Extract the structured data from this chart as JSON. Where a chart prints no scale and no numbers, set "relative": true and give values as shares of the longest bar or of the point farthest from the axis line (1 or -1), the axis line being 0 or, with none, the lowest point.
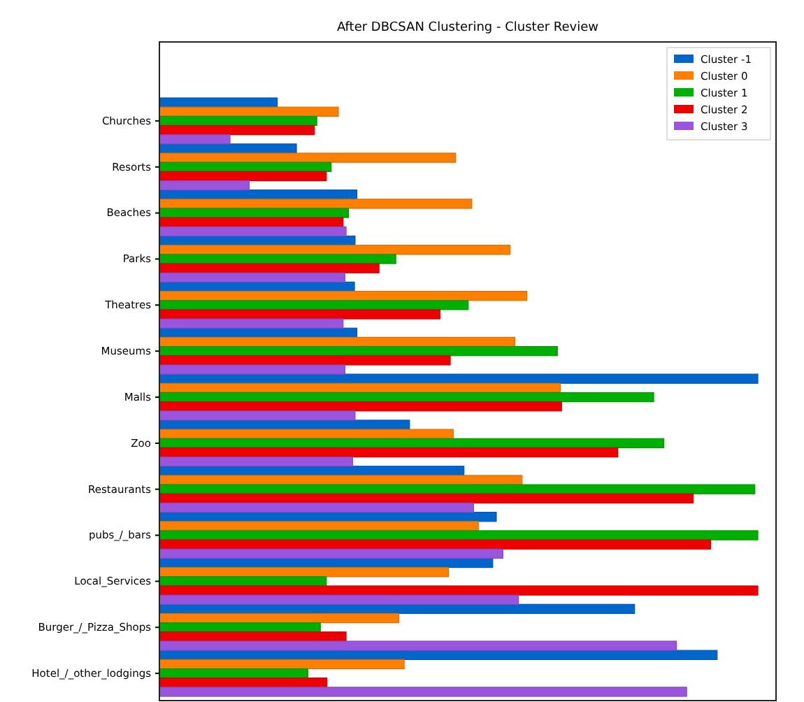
{
  "chart_data": {
    "type": "bar",
    "orientation": "horizontal",
    "relative": true,
    "title": "After DBCSAN Clustering - Cluster Review",
    "categories": [
      "Churches",
      "Resorts",
      "Beaches",
      "Parks",
      "Theatres",
      "Museums",
      "Malls",
      "Zoo",
      "Restaurants",
      "pubs_/_bars",
      "Local_Services",
      "Burger_/_Pizza_Shops",
      "Hotel_/_other_lodgings"
    ],
    "legend": "top right",
    "series": [
      {
        "name": "Cluster -1",
        "color": "#0066cc",
        "values": [
          0.197,
          0.229,
          0.33,
          0.327,
          0.326,
          0.33,
          1.0,
          0.418,
          0.509,
          0.563,
          0.557,
          0.794,
          0.932
        ]
      },
      {
        "name": "Cluster 0",
        "color": "#ff7f00",
        "values": [
          0.299,
          0.495,
          0.522,
          0.586,
          0.614,
          0.594,
          0.67,
          0.491,
          0.606,
          0.533,
          0.483,
          0.4,
          0.409
        ]
      },
      {
        "name": "Cluster 1",
        "color": "#00b000",
        "values": [
          0.263,
          0.287,
          0.316,
          0.395,
          0.516,
          0.665,
          0.826,
          0.843,
          0.995,
          1.0,
          0.279,
          0.269,
          0.248
        ]
      },
      {
        "name": "Cluster 2",
        "color": "#ee0000",
        "values": [
          0.259,
          0.279,
          0.307,
          0.367,
          0.469,
          0.486,
          0.672,
          0.766,
          0.892,
          0.921,
          1.0,
          0.312,
          0.28
        ]
      },
      {
        "name": "Cluster 3",
        "color": "#9955dd",
        "values": [
          0.118,
          0.15,
          0.312,
          0.31,
          0.307,
          0.31,
          0.327,
          0.323,
          0.525,
          0.574,
          0.6,
          0.864,
          0.881
        ]
      }
    ]
  }
}
